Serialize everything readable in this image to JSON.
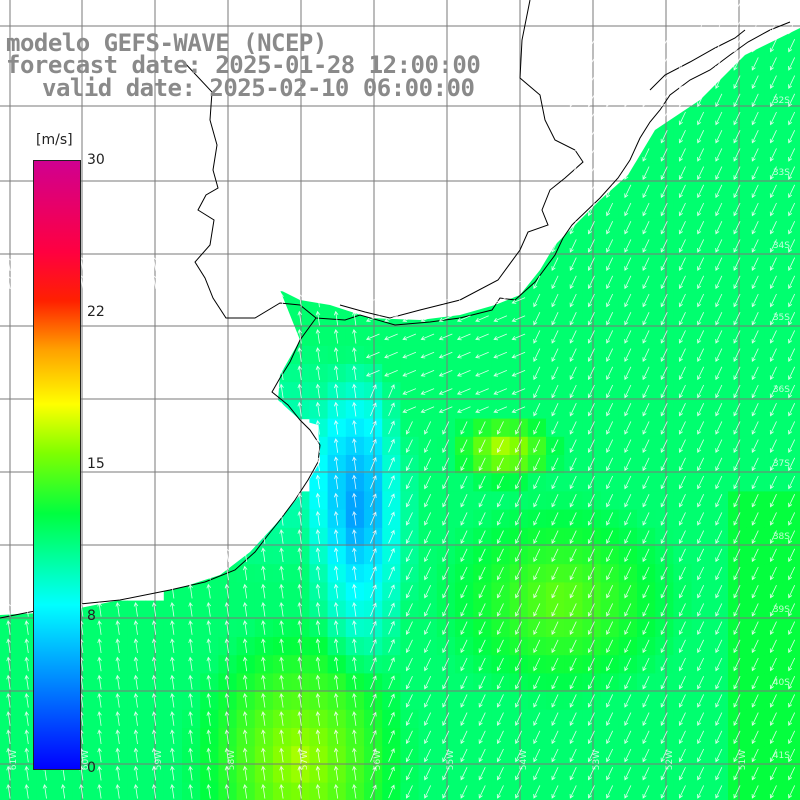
{
  "title": {
    "line1": "modelo GEFS-WAVE (NCEP)",
    "line2": "forecast date: 2025-01-28 12:00:00",
    "line3": "valid date: 2025-02-10 06:00:00"
  },
  "colorbar": {
    "unit": "[m/s]",
    "ticks": [
      "30",
      "22",
      "15",
      "8",
      "0"
    ],
    "colors": [
      "#0000ff",
      "#00a0ff",
      "#00ffff",
      "#00ff40",
      "#80ff00",
      "#ffff00",
      "#ffa000",
      "#ff2000",
      "#d00090"
    ]
  },
  "lat_labels": [
    "32S",
    "33S",
    "34S",
    "35S",
    "36S",
    "37S",
    "38S",
    "39S",
    "40S",
    "41S"
  ],
  "lon_labels": [
    "61W",
    "60W",
    "59W",
    "58W",
    "57W",
    "56W",
    "55W",
    "54W",
    "53W",
    "52W",
    "51W"
  ],
  "colors": {
    "land": "#ffffff",
    "grid": "#7a7a7a",
    "coast": "#000000",
    "arrows": "#ffffff"
  }
}
